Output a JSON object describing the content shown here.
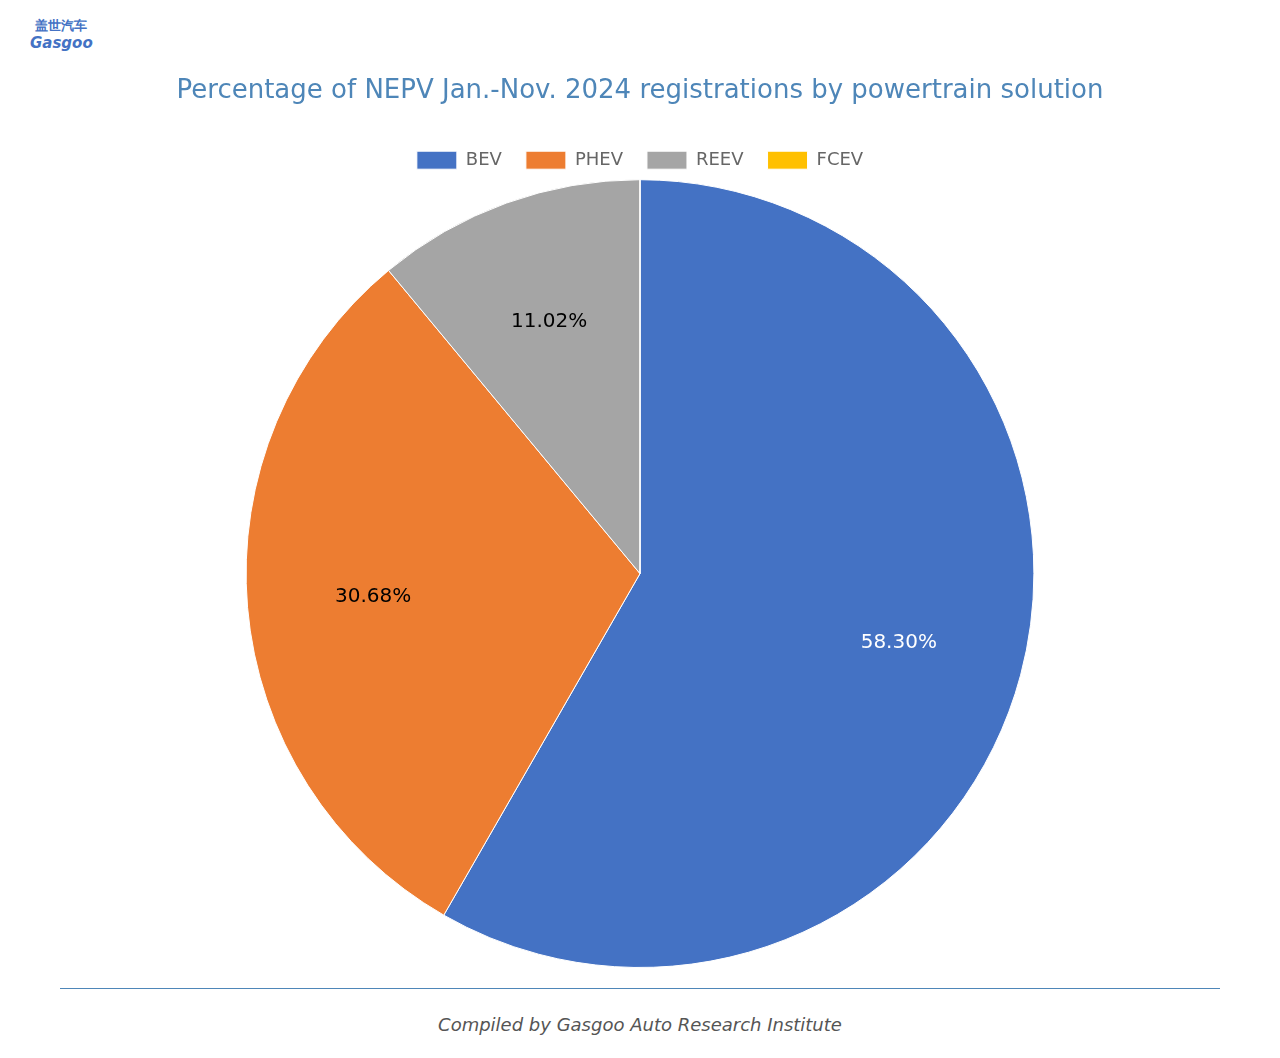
{
  "chart_data": {
    "type": "pie",
    "title": "Percentage of NEPV Jan.-Nov. 2024 registrations by powertrain solution",
    "categories": [
      "BEV",
      "PHEV",
      "REEV",
      "FCEV"
    ],
    "values": [
      58.3,
      30.68,
      11.02,
      0.001
    ],
    "value_labels": [
      "58.30%",
      "30.68%",
      "11.02%",
      null
    ],
    "colors": [
      "#4472C4",
      "#ED7D31",
      "#A5A5A5",
      "#FFC000"
    ],
    "data_labels": true,
    "legend": "top",
    "annotations": [
      "盖世汽车",
      "Gasgoo",
      "Compiled by Gasgoo Auto Research Institute"
    ]
  }
}
